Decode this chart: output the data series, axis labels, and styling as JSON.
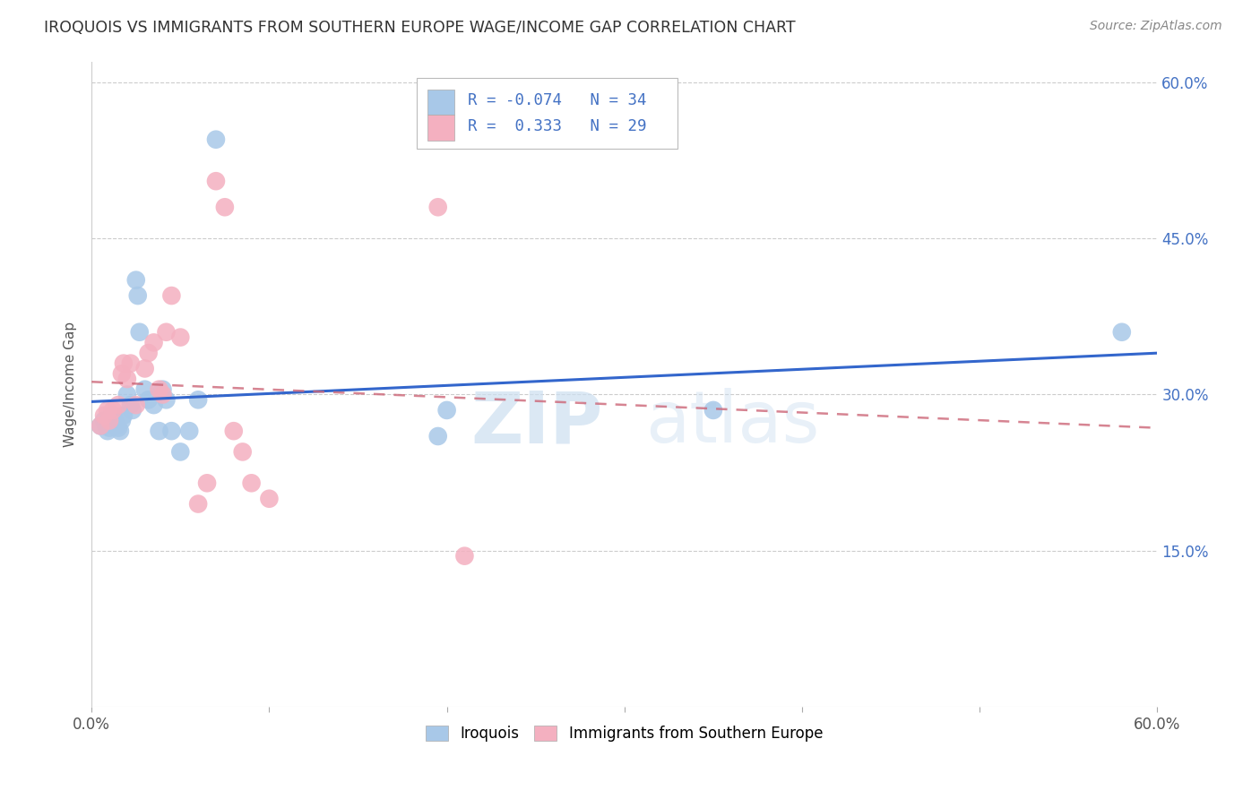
{
  "title": "IROQUOIS VS IMMIGRANTS FROM SOUTHERN EUROPE WAGE/INCOME GAP CORRELATION CHART",
  "source": "Source: ZipAtlas.com",
  "ylabel": "Wage/Income Gap",
  "xlim": [
    0.0,
    0.6
  ],
  "ylim": [
    0.0,
    0.62
  ],
  "iroquois_color": "#a8c8e8",
  "immigrants_color": "#f4b0c0",
  "iroquois_line_color": "#3366cc",
  "immigrants_line_color": "#cc6677",
  "iroquois_x": [
    0.005,
    0.007,
    0.008,
    0.009,
    0.01,
    0.011,
    0.012,
    0.013,
    0.014,
    0.015,
    0.016,
    0.017,
    0.018,
    0.02,
    0.022,
    0.023,
    0.025,
    0.026,
    0.027,
    0.03,
    0.032,
    0.035,
    0.038,
    0.04,
    0.042,
    0.045,
    0.05,
    0.055,
    0.06,
    0.07,
    0.195,
    0.2,
    0.35,
    0.58
  ],
  "iroquois_y": [
    0.27,
    0.275,
    0.27,
    0.265,
    0.268,
    0.272,
    0.28,
    0.275,
    0.27,
    0.268,
    0.265,
    0.275,
    0.28,
    0.3,
    0.29,
    0.285,
    0.41,
    0.395,
    0.36,
    0.305,
    0.295,
    0.29,
    0.265,
    0.305,
    0.295,
    0.265,
    0.245,
    0.265,
    0.295,
    0.545,
    0.26,
    0.285,
    0.285,
    0.36
  ],
  "immigrants_x": [
    0.005,
    0.007,
    0.009,
    0.01,
    0.012,
    0.015,
    0.017,
    0.018,
    0.02,
    0.022,
    0.025,
    0.03,
    0.032,
    0.035,
    0.038,
    0.04,
    0.042,
    0.045,
    0.05,
    0.06,
    0.065,
    0.07,
    0.075,
    0.08,
    0.085,
    0.09,
    0.1,
    0.195,
    0.21
  ],
  "immigrants_y": [
    0.27,
    0.28,
    0.285,
    0.275,
    0.285,
    0.29,
    0.32,
    0.33,
    0.315,
    0.33,
    0.29,
    0.325,
    0.34,
    0.35,
    0.305,
    0.3,
    0.36,
    0.395,
    0.355,
    0.195,
    0.215,
    0.505,
    0.48,
    0.265,
    0.245,
    0.215,
    0.2,
    0.48,
    0.145
  ],
  "watermark_zip": "ZIP",
  "watermark_atlas": "atlas",
  "background_color": "#ffffff",
  "grid_color": "#cccccc"
}
